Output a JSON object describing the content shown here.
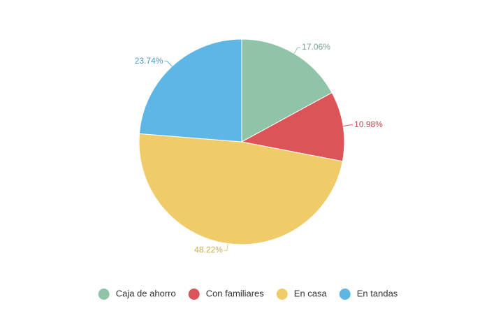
{
  "chart_data": {
    "type": "pie",
    "categories": [
      "Caja de ahorro",
      "Con familiares",
      "En casa",
      "En tandas"
    ],
    "values": [
      17.06,
      10.98,
      48.22,
      23.74
    ],
    "value_labels": [
      "17.06%",
      "10.98%",
      "48.22%",
      "23.74%"
    ],
    "colors": [
      "#8fc4a8",
      "#dc5457",
      "#efcb6a",
      "#5db6e4"
    ],
    "legend": "bottom"
  }
}
